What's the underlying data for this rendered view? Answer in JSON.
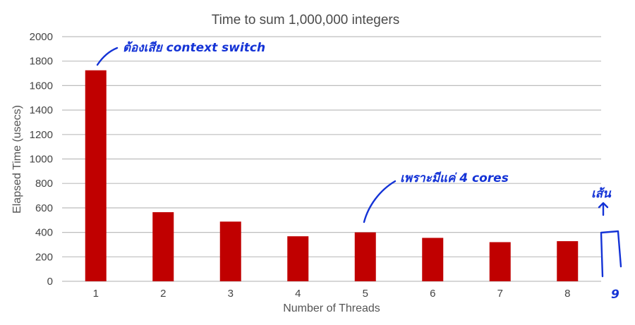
{
  "chart_data": {
    "type": "bar",
    "title": "Time to sum 1,000,000 integers",
    "xlabel": "Number of Threads",
    "ylabel": "Elapsed Time (usecs)",
    "categories": [
      "1",
      "2",
      "3",
      "4",
      "5",
      "6",
      "7",
      "8"
    ],
    "values": [
      1725,
      565,
      488,
      368,
      400,
      355,
      320,
      328
    ],
    "ylim": [
      0,
      2000
    ],
    "yticks": [
      "0",
      "200",
      "400",
      "600",
      "800",
      "1000",
      "1200",
      "1400",
      "1600",
      "1800",
      "2000"
    ],
    "grid": true,
    "legend": "none",
    "bar_color": "#c00000"
  },
  "annotations": {
    "note_thread1": "ต้องเสีย context switch",
    "note_thread5": "เพราะมีแค่ 4 cores",
    "note_right_top": "เส้น",
    "note_right_bottom": "9"
  },
  "colors": {
    "ink": "#1433d6",
    "bar": "#c00000"
  }
}
